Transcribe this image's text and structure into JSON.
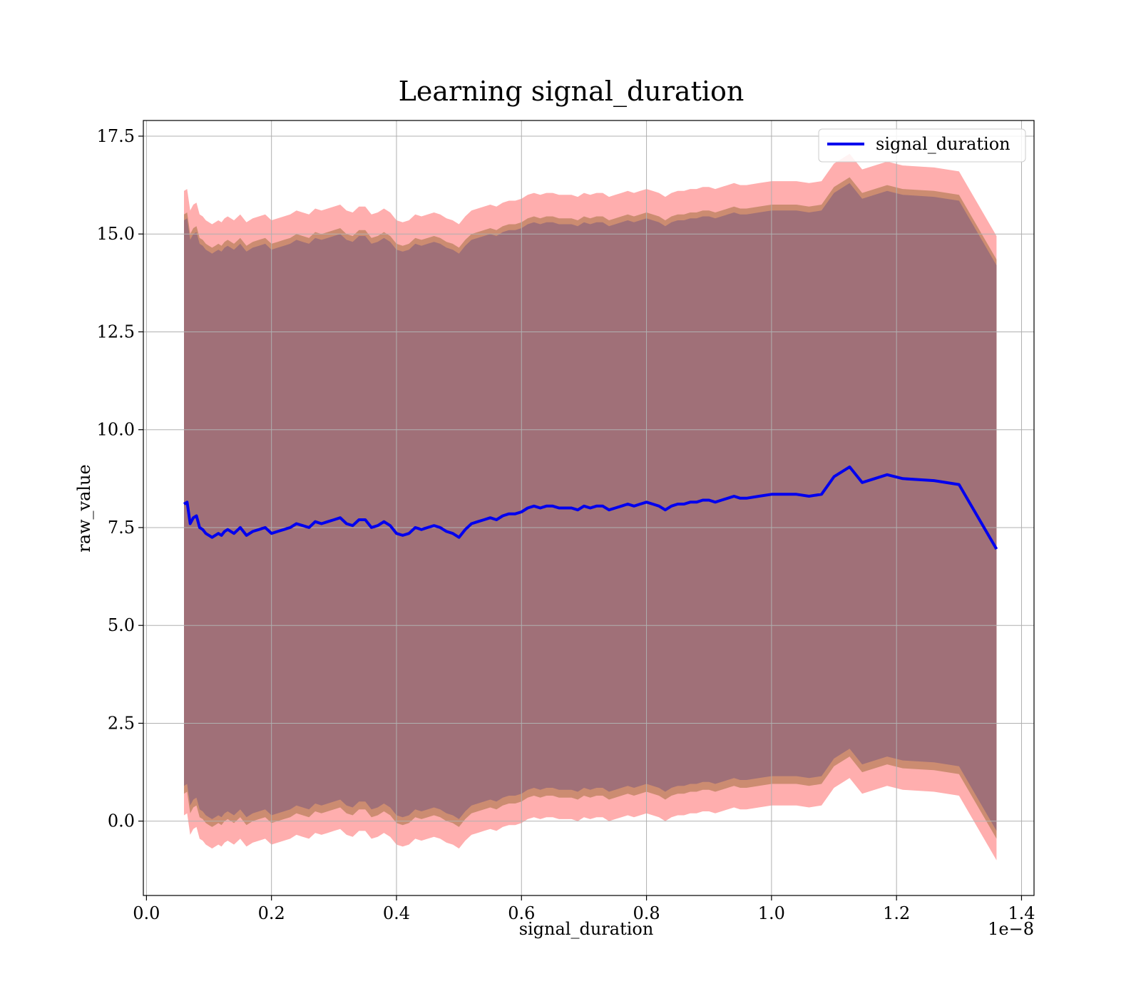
{
  "chart_data": {
    "type": "line",
    "title": "Learning signal_duration",
    "xlabel": "signal_duration",
    "ylabel": "raw_value",
    "x_offset_label": "1e−8",
    "xlim": [
      -0.005,
      1.42
    ],
    "ylim": [
      -1.9,
      17.9
    ],
    "x_ticks": [
      0.0,
      0.2,
      0.4,
      0.6,
      0.8,
      1.0,
      1.2,
      1.4
    ],
    "x_tick_labels": [
      "0.0",
      "0.2",
      "0.4",
      "0.6",
      "0.8",
      "1.0",
      "1.2",
      "1.4"
    ],
    "y_ticks": [
      0.0,
      2.5,
      5.0,
      7.5,
      10.0,
      12.5,
      15.0,
      17.5
    ],
    "y_tick_labels": [
      "0.0",
      "2.5",
      "5.0",
      "7.5",
      "10.0",
      "12.5",
      "15.0",
      "17.5"
    ],
    "grid": true,
    "legend": {
      "position": "top-right",
      "entries": [
        "signal_duration"
      ]
    },
    "colors": {
      "line": "#0000ee",
      "band_outer": "#ff9a9a",
      "band_mid": "#c98a6e",
      "band_inner": "#a07078",
      "grid": "#b0b0b0"
    },
    "x": [
      0.06,
      0.065,
      0.07,
      0.075,
      0.08,
      0.085,
      0.09,
      0.095,
      0.1,
      0.105,
      0.11,
      0.115,
      0.12,
      0.125,
      0.13,
      0.14,
      0.15,
      0.16,
      0.17,
      0.18,
      0.19,
      0.2,
      0.21,
      0.22,
      0.23,
      0.24,
      0.25,
      0.26,
      0.27,
      0.28,
      0.29,
      0.3,
      0.31,
      0.32,
      0.33,
      0.34,
      0.35,
      0.36,
      0.37,
      0.38,
      0.39,
      0.4,
      0.41,
      0.42,
      0.43,
      0.44,
      0.45,
      0.46,
      0.47,
      0.48,
      0.49,
      0.5,
      0.51,
      0.52,
      0.53,
      0.54,
      0.55,
      0.56,
      0.57,
      0.58,
      0.59,
      0.6,
      0.61,
      0.62,
      0.63,
      0.64,
      0.65,
      0.66,
      0.67,
      0.68,
      0.69,
      0.7,
      0.71,
      0.72,
      0.73,
      0.74,
      0.75,
      0.76,
      0.77,
      0.78,
      0.79,
      0.8,
      0.81,
      0.82,
      0.83,
      0.84,
      0.85,
      0.86,
      0.87,
      0.88,
      0.89,
      0.9,
      0.91,
      0.92,
      0.93,
      0.94,
      0.95,
      0.96,
      0.98,
      1.0,
      1.02,
      1.04,
      1.06,
      1.08,
      1.1,
      1.125,
      1.145,
      1.185,
      1.21,
      1.26,
      1.3,
      1.36
    ],
    "series": [
      {
        "name": "signal_duration",
        "values": [
          8.1,
          8.15,
          7.6,
          7.75,
          7.8,
          7.5,
          7.45,
          7.35,
          7.3,
          7.25,
          7.3,
          7.35,
          7.3,
          7.4,
          7.45,
          7.35,
          7.5,
          7.3,
          7.4,
          7.45,
          7.5,
          7.35,
          7.4,
          7.45,
          7.5,
          7.6,
          7.55,
          7.5,
          7.65,
          7.6,
          7.65,
          7.7,
          7.75,
          7.6,
          7.55,
          7.7,
          7.7,
          7.5,
          7.55,
          7.65,
          7.55,
          7.35,
          7.3,
          7.35,
          7.5,
          7.45,
          7.5,
          7.55,
          7.5,
          7.4,
          7.35,
          7.25,
          7.45,
          7.6,
          7.65,
          7.7,
          7.75,
          7.7,
          7.8,
          7.85,
          7.85,
          7.9,
          8.0,
          8.05,
          8.0,
          8.05,
          8.05,
          8.0,
          8.0,
          8.0,
          7.95,
          8.05,
          8.0,
          8.05,
          8.05,
          7.95,
          8.0,
          8.05,
          8.1,
          8.05,
          8.1,
          8.15,
          8.1,
          8.05,
          7.95,
          8.05,
          8.1,
          8.1,
          8.15,
          8.15,
          8.2,
          8.2,
          8.15,
          8.2,
          8.25,
          8.3,
          8.25,
          8.25,
          8.3,
          8.35,
          8.35,
          8.35,
          8.3,
          8.35,
          8.8,
          9.05,
          8.65,
          8.85,
          8.75,
          8.7,
          8.6,
          6.95
        ]
      }
    ],
    "bands": [
      {
        "role": "outer",
        "upper_offset": 8.0,
        "lower_offset": 7.95
      },
      {
        "role": "mid",
        "upper_offset": 7.4,
        "lower_offset": 7.4
      },
      {
        "role": "inner",
        "upper_offset": 7.25,
        "lower_offset": 7.2
      }
    ]
  }
}
